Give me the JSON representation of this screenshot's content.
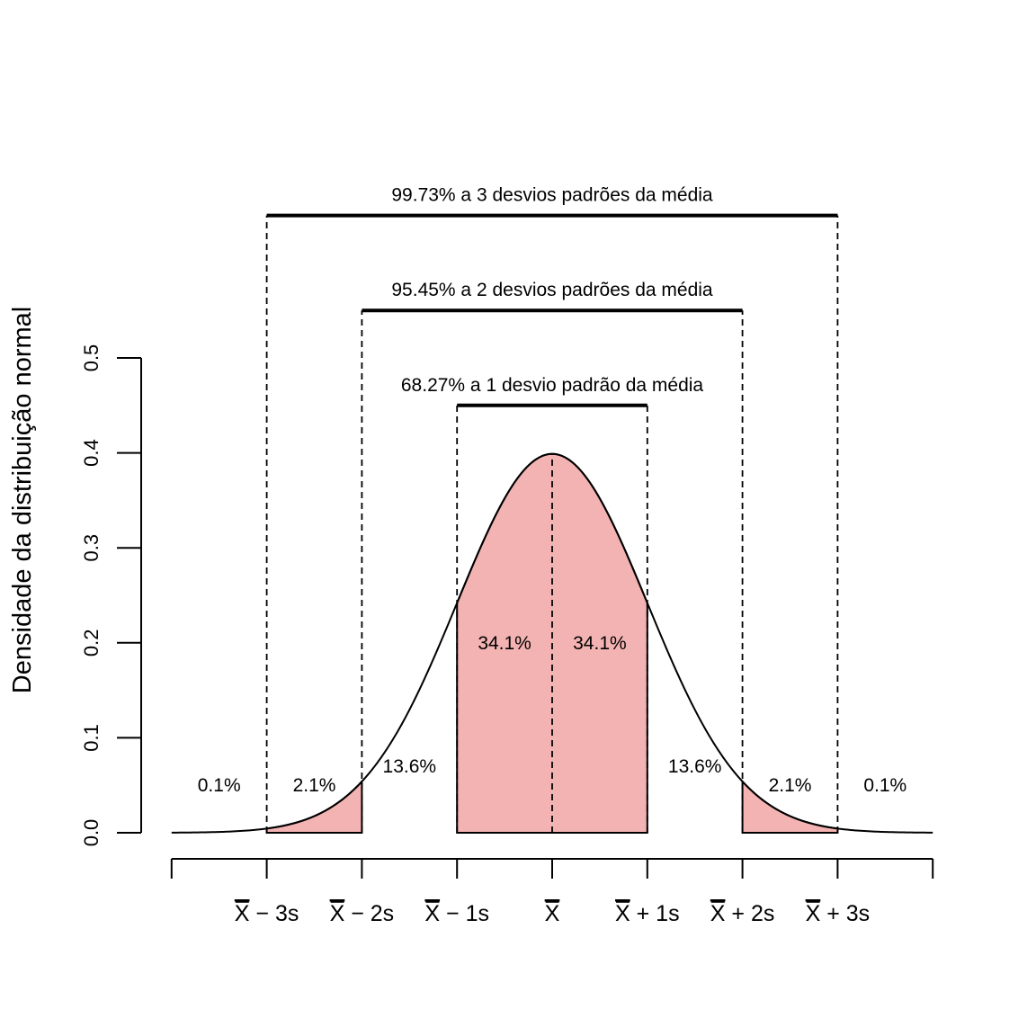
{
  "chart_data": {
    "type": "area",
    "title": "",
    "xlabel": "",
    "ylabel": "Densidade da distribuição normal",
    "xlim": [
      -4,
      4
    ],
    "ylim": [
      0,
      0.5
    ],
    "y_ticks": [
      "0.0",
      "0.1",
      "0.2",
      "0.3",
      "0.4",
      "0.5"
    ],
    "x_ticks": [
      -4,
      -3,
      -2,
      -1,
      0,
      1,
      2,
      3,
      4
    ],
    "x_tick_labels": [
      {
        "x": -3,
        "label": "X",
        "suffix": " − 3s"
      },
      {
        "x": -2,
        "label": "X",
        "suffix": " − 2s"
      },
      {
        "x": -1,
        "label": "X",
        "suffix": " − 1s"
      },
      {
        "x": 0,
        "label": "X",
        "suffix": ""
      },
      {
        "x": 1,
        "label": "X",
        "suffix": " + 1s"
      },
      {
        "x": 2,
        "label": "X",
        "suffix": " + 2s"
      },
      {
        "x": 3,
        "label": "X",
        "suffix": " + 3s"
      }
    ],
    "curve": {
      "mean": 0,
      "sd": 1,
      "peak": 0.3989
    },
    "shaded_color": "#f4b3b3",
    "shaded_regions": [
      [
        -3,
        -2
      ],
      [
        -1,
        1
      ],
      [
        2,
        3
      ]
    ],
    "percent_labels": [
      {
        "x": -3.5,
        "y": 0.05,
        "text": "0.1%"
      },
      {
        "x": -2.5,
        "y": 0.05,
        "text": "2.1%"
      },
      {
        "x": -1.5,
        "y": 0.07,
        "text": "13.6%"
      },
      {
        "x": -0.5,
        "y": 0.2,
        "text": "34.1%"
      },
      {
        "x": 0.5,
        "y": 0.2,
        "text": "34.1%"
      },
      {
        "x": 1.5,
        "y": 0.07,
        "text": "13.6%"
      },
      {
        "x": 2.5,
        "y": 0.05,
        "text": "2.1%"
      },
      {
        "x": 3.5,
        "y": 0.05,
        "text": "0.1%"
      }
    ],
    "brackets": [
      {
        "from": -1,
        "to": 1,
        "y": 0.45,
        "text": "68.27% a 1 desvio padrão da média"
      },
      {
        "from": -2,
        "to": 2,
        "y": 0.55,
        "text": "95.45% a 2 desvios padrões da média"
      },
      {
        "from": -3,
        "to": 3,
        "y": 0.65,
        "text": "99.73% a 3 desvios padrões da média"
      }
    ]
  }
}
